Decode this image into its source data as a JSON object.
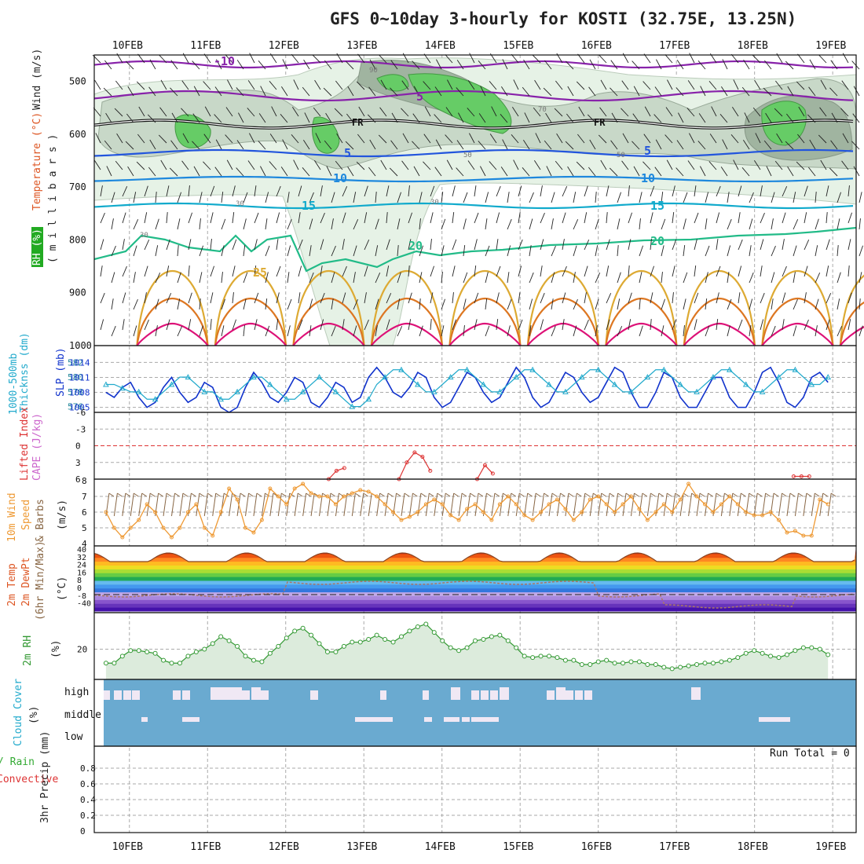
{
  "title": "GFS 0~10day 3-hourly for KOSTI (32.75E, 13.25N)",
  "dates": [
    "10FEB",
    "11FEB",
    "12FEB",
    "13FEB",
    "14FEB",
    "15FEB",
    "16FEB",
    "17FEB",
    "18FEB",
    "19FEB"
  ],
  "colors": {
    "grid": "#aaaaaa",
    "rh_green": "#66cc66",
    "rh_light": "#e6f2e6",
    "rh_mid": "#c8d8c8",
    "rh_dark": "#a0b4a0",
    "temp_purple": "#8822aa",
    "temp_blue": "#2255dd",
    "temp_teal": "#11aacc",
    "temp_green": "#22bb88",
    "temp_yellow": "#ddaa33",
    "temp_orange": "#dd7722",
    "temp_red": "#dd1177",
    "freezing": "#111111",
    "slp": "#1133cc",
    "thickness": "#22aacc",
    "li_line": "#dd3333",
    "wind10": "#ee9933",
    "barb": "#886644",
    "rh2m": "#339933",
    "cloud_bg": "#6aaad0",
    "cloud_clear": "#f0e8f4"
  },
  "panels": {
    "upper": {
      "y_label_rh": "RH (%)",
      "y_label_temp": "Temperature (°C)",
      "y_label_wind": "Wind (m/s)",
      "y_label_unit": "( m i l l i b a r s )",
      "y_ticks": [
        "500",
        "600",
        "700",
        "800",
        "900",
        "1000"
      ],
      "temp_labels": [
        "-10",
        "5",
        "FR",
        "FR",
        "5",
        "5",
        "10",
        "10",
        "15",
        "15",
        "20",
        "20",
        "25"
      ],
      "rh_labels": [
        "30",
        "30",
        "50",
        "50",
        "70",
        "30",
        "90"
      ]
    },
    "slp": {
      "y_label_thick": "1000-500mb",
      "y_label_thick2": "Thicknss (dm)",
      "y_label_slp": "SLP (mb)",
      "left_ticks": [
        "582",
        "580",
        "578",
        "576"
      ],
      "right_ticks": [
        "1014",
        "1011",
        "1008",
        "1005"
      ]
    },
    "li": {
      "y_label_li": "Lifted Index",
      "y_label_cape": "CAPE (J/kg)",
      "ticks": [
        "-6",
        "-3",
        "0",
        "3",
        "6"
      ]
    },
    "wind10": {
      "y_label_1": "10m Wind",
      "y_label_2": "Speed",
      "y_label_3": "& Barbs",
      "y_label_unit": "(m/s)",
      "ticks": [
        "8",
        "7",
        "6",
        "5",
        "4"
      ]
    },
    "temp2m": {
      "y_label_1": "2m Temp",
      "y_label_2": "2m DewPt",
      "y_label_3": "(6hr Min/Max)",
      "y_label_unit": "(°C)",
      "ticks": [
        "40",
        "32",
        "24",
        "16",
        "8",
        "0",
        "-8",
        "-40"
      ]
    },
    "rh2m": {
      "y_label": "2m RH",
      "y_label_unit": "(%)",
      "ticks": [
        "20"
      ]
    },
    "cloud": {
      "y_label": "Cloud Cover",
      "y_label_unit": "(%)",
      "levels": [
        "high",
        "middle",
        "low"
      ]
    },
    "precip": {
      "y_label_1": "Total / Rain",
      "y_label_2": "Convective",
      "y_label_unit": "3hr Precip (mm)",
      "ticks": [
        "0.8",
        "0.6",
        "0.4",
        "0.2",
        "0"
      ],
      "run_total": "Run Total = 0"
    }
  },
  "chart_data": [
    {
      "type": "line",
      "name": "SLP",
      "unit": "mb",
      "ylim": [
        1004,
        1015
      ],
      "values": [
        1008,
        1007,
        1009,
        1010,
        1007,
        1005,
        1006,
        1009,
        1011,
        1008,
        1006,
        1007,
        1010,
        1009,
        1005,
        1004,
        1005,
        1009,
        1012,
        1010,
        1007,
        1006,
        1008,
        1011,
        1010,
        1006,
        1005,
        1007,
        1010,
        1009,
        1006,
        1007,
        1011,
        1013,
        1011,
        1008,
        1007,
        1009,
        1012,
        1011,
        1007,
        1005,
        1006,
        1009,
        1012,
        1011,
        1008,
        1006,
        1007,
        1010,
        1013,
        1011,
        1007,
        1005,
        1006,
        1009,
        1012,
        1011,
        1008,
        1006,
        1007,
        1010,
        1013,
        1012,
        1008,
        1005,
        1005,
        1008,
        1012,
        1011,
        1007,
        1005,
        1005,
        1008,
        1011,
        1011,
        1007,
        1005,
        1005,
        1008,
        1012,
        1013,
        1010,
        1006,
        1005,
        1007,
        1011,
        1012,
        1010
      ]
    },
    {
      "type": "line",
      "name": "1000-500mb Thickness",
      "unit": "dm",
      "ylim": [
        575,
        583
      ],
      "values": [
        579,
        579,
        578.5,
        578,
        578,
        577,
        577,
        578,
        579,
        580,
        580,
        579,
        578,
        578,
        577,
        577,
        578,
        579,
        580,
        580,
        579,
        578,
        577,
        577,
        578,
        579,
        580,
        579,
        578,
        577,
        576,
        576,
        577,
        579,
        580,
        581,
        581,
        580,
        579,
        578,
        578,
        579,
        580,
        581,
        581,
        580,
        579,
        578,
        578,
        579,
        580,
        581,
        581,
        580,
        579,
        578,
        578,
        579,
        580,
        581,
        581,
        580,
        579,
        578,
        578,
        579,
        580,
        581,
        581,
        580,
        579,
        578,
        578,
        579,
        580,
        581,
        581,
        580,
        579,
        578,
        578,
        579,
        580,
        581,
        581,
        580,
        579,
        579,
        580
      ]
    },
    {
      "type": "line",
      "name": "Lifted Index",
      "unit": "",
      "ylim": [
        -6,
        6
      ],
      "segments": [
        {
          "x": [
            12.55,
            12.65,
            12.75
          ],
          "y": [
            6,
            4.5,
            4
          ]
        },
        {
          "x": [
            13.45,
            13.55,
            13.65,
            13.75,
            13.85
          ],
          "y": [
            6,
            3,
            1.2,
            2,
            4.5
          ]
        },
        {
          "x": [
            14.45,
            14.55,
            14.65
          ],
          "y": [
            6,
            3.5,
            5
          ]
        },
        {
          "x": [
            18.5,
            18.6,
            18.7
          ],
          "y": [
            5.5,
            5.5,
            5.5
          ]
        }
      ]
    },
    {
      "type": "line",
      "name": "10m Wind Speed",
      "unit": "m/s",
      "ylim": [
        4,
        8
      ],
      "values": [
        6,
        5,
        4.4,
        5,
        5.5,
        6.5,
        6,
        5,
        4.4,
        5,
        6,
        6.5,
        5,
        4.5,
        6,
        7.5,
        6.8,
        5,
        4.7,
        5.5,
        7.5,
        7,
        6.5,
        7.5,
        7.8,
        7.2,
        7,
        7,
        6.5,
        7,
        7.2,
        7.4,
        7.3,
        7,
        6.5,
        6,
        5.5,
        5.7,
        6,
        6.5,
        6.8,
        6.5,
        5.8,
        5.5,
        6.2,
        6.5,
        6,
        5.5,
        6.5,
        7,
        6.5,
        5.8,
        5.5,
        6,
        6.5,
        6.8,
        6.2,
        5.5,
        6,
        6.8,
        7,
        6.5,
        6,
        6.5,
        7,
        6.2,
        5.5,
        6,
        6.5,
        6,
        6.8,
        7.8,
        7,
        6.5,
        6,
        6.5,
        7,
        6.5,
        6,
        5.8,
        5.8,
        6,
        5.5,
        4.7,
        4.8,
        4.5,
        4.5,
        6.8,
        6.5
      ]
    },
    {
      "type": "area",
      "name": "2m RH",
      "unit": "%",
      "ylim": [
        0,
        45
      ],
      "values": [
        10,
        10,
        15,
        19,
        19,
        18,
        17,
        12,
        10,
        10,
        15,
        18,
        20,
        24,
        29,
        26,
        22,
        15,
        12,
        11,
        17,
        22,
        28,
        33,
        35,
        30,
        24,
        18,
        18,
        22,
        25,
        25,
        27,
        30,
        27,
        25,
        29,
        33,
        36,
        38,
        32,
        26,
        21,
        19,
        21,
        26,
        27,
        29,
        30,
        26,
        21,
        15,
        14,
        15,
        15,
        14,
        12,
        12,
        9,
        9,
        11,
        12,
        10,
        10,
        11,
        11,
        9,
        9,
        7,
        6,
        7,
        8,
        9,
        10,
        10,
        11,
        12,
        14,
        17,
        19,
        17,
        15,
        14,
        16,
        19,
        21,
        21,
        20,
        16
      ]
    },
    {
      "type": "bar",
      "name": "3hr Precip",
      "unit": "mm",
      "ylim": [
        0,
        1
      ],
      "values": [],
      "note": "Run Total = 0"
    }
  ]
}
